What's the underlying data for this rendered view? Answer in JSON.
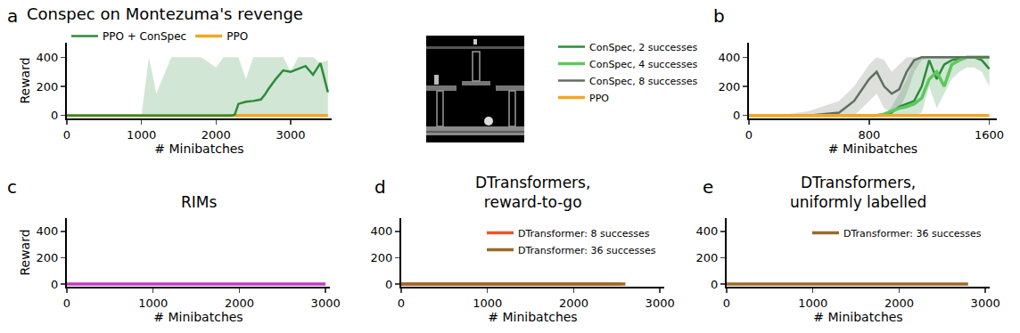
{
  "chart_data": [
    {
      "type": "line",
      "panel": "a",
      "title": "Conspec on Montezuma's revenge",
      "x_label": "# Minibatches",
      "y_label": "Reward",
      "xlim": [
        0,
        3550
      ],
      "xticks": [
        0,
        1000,
        2000,
        3000
      ],
      "ylim": [
        -20,
        500
      ],
      "yticks": [
        0,
        200,
        400
      ],
      "grid": false,
      "legend": "top",
      "x": [
        0,
        500,
        1000,
        1100,
        1200,
        1400,
        1600,
        1800,
        2000,
        2100,
        2200,
        2250,
        2300,
        2400,
        2500,
        2600,
        2650,
        2700,
        2800,
        2900,
        3000,
        3100,
        3200,
        3300,
        3400,
        3500
      ],
      "series": [
        {
          "name": "PPO",
          "color": "#f5a623",
          "values": [
            0,
            0,
            0,
            0,
            0,
            0,
            0,
            0,
            0,
            0,
            0,
            0,
            0,
            0,
            0,
            0,
            0,
            0,
            0,
            0,
            0,
            0,
            0,
            0,
            0,
            0
          ]
        },
        {
          "name": "PPO + ConSpec",
          "color": "#2e8b3a",
          "values": [
            0,
            0,
            0,
            0,
            0,
            0,
            0,
            0,
            0,
            0,
            0,
            5,
            80,
            95,
            100,
            110,
            140,
            180,
            250,
            310,
            300,
            320,
            340,
            280,
            360,
            160
          ],
          "upper": [
            0,
            0,
            0,
            400,
            150,
            400,
            400,
            400,
            330,
            400,
            400,
            400,
            400,
            250,
            400,
            400,
            400,
            400,
            400,
            400,
            300,
            400,
            400,
            400,
            360,
            380
          ],
          "lower": [
            0,
            0,
            0,
            0,
            0,
            0,
            0,
            0,
            0,
            0,
            0,
            0,
            0,
            0,
            0,
            0,
            0,
            0,
            0,
            0,
            0,
            0,
            0,
            0,
            0,
            0
          ]
        }
      ]
    },
    {
      "type": "line",
      "panel": "b",
      "x_label": "# Minibatches",
      "xlim": [
        0,
        1650
      ],
      "xticks": [
        0,
        800,
        1600
      ],
      "ylim": [
        -20,
        500
      ],
      "yticks": [
        0,
        200,
        400
      ],
      "grid": false,
      "legend": "left",
      "x": [
        0,
        200,
        400,
        600,
        700,
        800,
        850,
        900,
        950,
        1000,
        1050,
        1100,
        1150,
        1200,
        1250,
        1300,
        1350,
        1400,
        1450,
        1500,
        1550,
        1600
      ],
      "series": [
        {
          "name": "ConSpec, 2 successes",
          "color": "#2e8b3a",
          "values": [
            0,
            0,
            0,
            0,
            0,
            0,
            0,
            0,
            20,
            60,
            80,
            100,
            200,
            380,
            250,
            350,
            380,
            390,
            400,
            400,
            380,
            320
          ],
          "upper": [
            0,
            0,
            0,
            0,
            0,
            0,
            0,
            0,
            60,
            150,
            250,
            380,
            400,
            400,
            400,
            400,
            400,
            400,
            400,
            400,
            400,
            400
          ],
          "lower": [
            0,
            0,
            0,
            0,
            0,
            0,
            0,
            0,
            0,
            0,
            0,
            0,
            20,
            200,
            50,
            150,
            250,
            300,
            330,
            330,
            300,
            200
          ]
        },
        {
          "name": "ConSpec, 4 successes",
          "color": "#5cc85c",
          "values": [
            0,
            0,
            0,
            0,
            0,
            0,
            0,
            10,
            30,
            50,
            60,
            80,
            120,
            250,
            300,
            200,
            350,
            380,
            400,
            400,
            400,
            400
          ]
        },
        {
          "name": "ConSpec, 8 successes",
          "color": "#5f6f5f",
          "values": [
            0,
            0,
            0,
            20,
            100,
            250,
            300,
            200,
            150,
            180,
            300,
            380,
            400,
            400,
            400,
            400,
            400,
            400,
            400,
            400,
            400,
            400
          ],
          "upper": [
            0,
            0,
            30,
            100,
            200,
            350,
            400,
            380,
            300,
            350,
            400,
            400,
            400,
            400,
            400,
            400,
            400,
            400,
            400,
            400,
            400,
            400
          ],
          "lower": [
            0,
            0,
            0,
            0,
            0,
            100,
            150,
            50,
            20,
            40,
            150,
            300,
            380,
            390,
            390,
            390,
            390,
            390,
            390,
            390,
            390,
            390
          ]
        },
        {
          "name": "PPO",
          "color": "#f5a623",
          "values": [
            0,
            0,
            0,
            0,
            0,
            0,
            0,
            0,
            0,
            0,
            0,
            0,
            0,
            0,
            0,
            0,
            0,
            0,
            0,
            0,
            0,
            0
          ]
        }
      ]
    },
    {
      "type": "line",
      "panel": "c",
      "title": "RIMs",
      "x_label": "# Minibatches",
      "y_label": "Reward",
      "xlim": [
        0,
        3050
      ],
      "xticks": [
        0,
        1000,
        2000,
        3000
      ],
      "ylim": [
        -20,
        500
      ],
      "yticks": [
        0,
        200,
        400
      ],
      "grid": false,
      "x": [
        0,
        1500,
        3000
      ],
      "series": [
        {
          "color": "#c23bc2",
          "values": [
            0,
            0,
            0
          ]
        }
      ]
    },
    {
      "type": "line",
      "panel": "d",
      "title": "DTransformers, reward-to-go",
      "x_label": "# Minibatches",
      "xlim": [
        0,
        3050
      ],
      "xticks": [
        0,
        1000,
        2000,
        3000
      ],
      "ylim": [
        -20,
        500
      ],
      "yticks": [
        0,
        200,
        400
      ],
      "grid": false,
      "legend": "upper right",
      "x": [
        0,
        1300,
        2550,
        2600
      ],
      "series": [
        {
          "name": "DTransformer: 8 successes",
          "color": "#e8572a",
          "values": [
            0,
            0,
            0,
            null
          ]
        },
        {
          "name": "DTransformer: 36 successes",
          "color": "#9b6a2a",
          "values": [
            0,
            0,
            0,
            0
          ]
        }
      ]
    },
    {
      "type": "line",
      "panel": "e",
      "title": "DTransformers, uniformly labelled",
      "x_label": "# Minibatches",
      "xlim": [
        0,
        3050
      ],
      "xticks": [
        0,
        1000,
        2000,
        3000
      ],
      "ylim": [
        -20,
        500
      ],
      "yticks": [
        0,
        200,
        400
      ],
      "grid": false,
      "legend": "upper right",
      "x": [
        0,
        1400,
        2800
      ],
      "series": [
        {
          "name": "DTransformer: 36 successes",
          "color": "#9b6a2a",
          "values": [
            0,
            0,
            0
          ]
        }
      ]
    }
  ]
}
